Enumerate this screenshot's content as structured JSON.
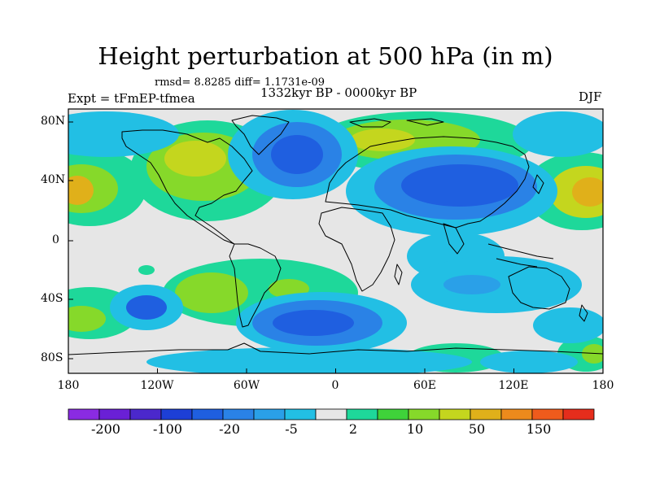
{
  "title": "Height perturbation at 500 hPa (in m)",
  "stats": "rmsd= 8.8285 diff= 1.1731e-09",
  "period": "1332kyr BP - 0000kyr BP",
  "experiment": "Expt = tFmEP-tfmea",
  "season": "DJF",
  "lat_labels": [
    "80N",
    "40N",
    "0",
    "40S",
    "80S"
  ],
  "lon_labels": [
    "180",
    "120W",
    "60W",
    "0",
    "60E",
    "120E",
    "180"
  ],
  "colorbar": {
    "labels": [
      "-200",
      "-100",
      "-20",
      "-5",
      "2",
      "10",
      "50",
      "150"
    ],
    "colors": [
      "#8a2be2",
      "#6a20d6",
      "#4b28cc",
      "#1d3fd6",
      "#1f5fe0",
      "#2a82e6",
      "#2aa0e8",
      "#22bfe4",
      "#e6e6e6",
      "#1ed89a",
      "#3fd23a",
      "#86d92a",
      "#c4d61e",
      "#e0b01a",
      "#ec8a1c",
      "#ef5b1c",
      "#e52d1c"
    ]
  },
  "background_color": "#e6e6e6",
  "coast_color": "#000000"
}
